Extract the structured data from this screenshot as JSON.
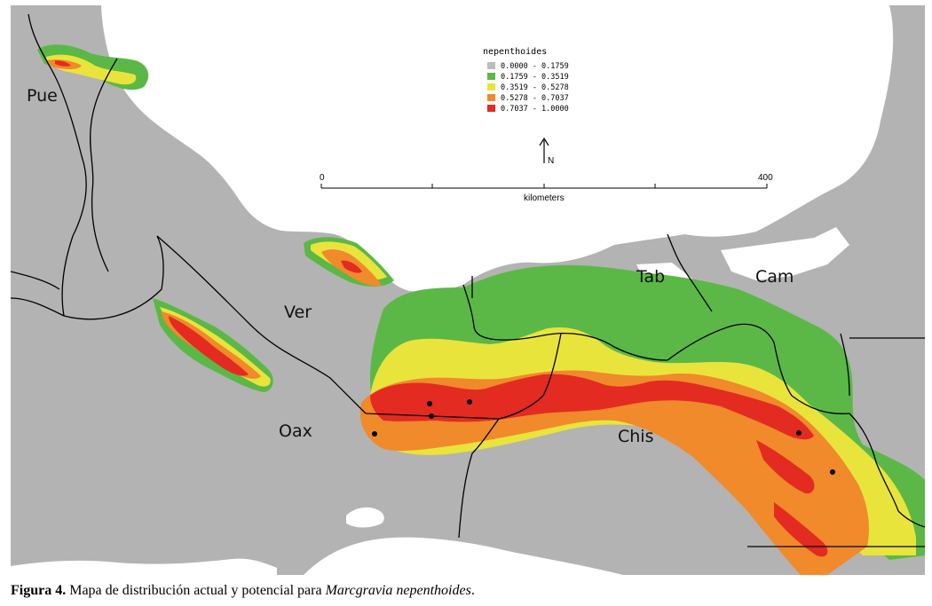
{
  "legend": {
    "title": "nepenthoides",
    "classes": [
      {
        "label": "0.0000 - 0.1759",
        "color": "#bdbdbd"
      },
      {
        "label": "0.1759 - 0.3519",
        "color": "#5bb847"
      },
      {
        "label": "0.3519 - 0.5278",
        "color": "#e8e43c"
      },
      {
        "label": "0.5278 - 0.7037",
        "color": "#f08a2a"
      },
      {
        "label": "0.7037 - 1.0000",
        "color": "#e32b22"
      }
    ]
  },
  "north_arrow": {
    "label": "N"
  },
  "scale_bar": {
    "start_label": "0",
    "end_label": "400",
    "unit_label": "kilometers"
  },
  "state_labels": {
    "pue": "Pue",
    "ver": "Ver",
    "tab": "Tab",
    "cam": "Cam",
    "oax": "Oax",
    "chis": "Chis"
  },
  "caption": {
    "figure_label": "Figura 4.",
    "text": " Mapa de distribución actual y potencial para ",
    "species": "Marcgravia nepenthoides",
    "end": "."
  },
  "colors": {
    "land": "#b3b3b3",
    "sea": "#ffffff",
    "border": "#000000"
  }
}
